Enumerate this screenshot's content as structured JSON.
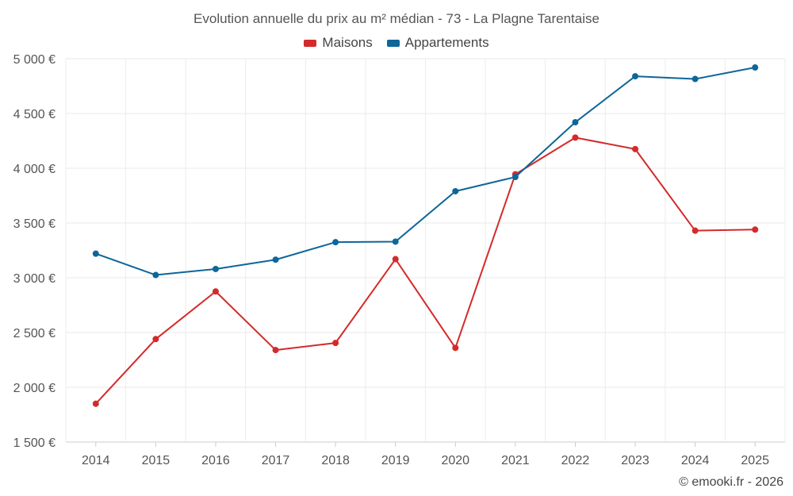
{
  "chart_data": {
    "type": "line",
    "title": "Evolution annuelle du prix au m² médian - 73 - La Plagne Tarentaise",
    "xlabel": "",
    "ylabel": "",
    "categories": [
      "2014",
      "2015",
      "2016",
      "2017",
      "2018",
      "2019",
      "2020",
      "2021",
      "2022",
      "2023",
      "2024",
      "2025"
    ],
    "series": [
      {
        "name": "Maisons",
        "color": "#d42a2a",
        "values": [
          1850,
          2440,
          2875,
          2340,
          2405,
          3170,
          2360,
          3945,
          4280,
          4175,
          3430,
          3440
        ]
      },
      {
        "name": "Appartements",
        "color": "#0e6699",
        "values": [
          3220,
          3025,
          3080,
          3165,
          3325,
          3330,
          3790,
          3920,
          4420,
          4840,
          4815,
          4920
        ]
      }
    ],
    "ylim": [
      1500,
      5000
    ],
    "yticks": [
      1500,
      2000,
      2500,
      3000,
      3500,
      4000,
      4500,
      5000
    ],
    "ytick_labels": [
      "1 500 €",
      "2 000 €",
      "2 500 €",
      "3 000 €",
      "3 500 €",
      "4 000 €",
      "4 500 €",
      "5 000 €"
    ],
    "grid": true,
    "legend_position": "top-center"
  },
  "footer": {
    "credit": "© emooki.fr - 2026"
  }
}
